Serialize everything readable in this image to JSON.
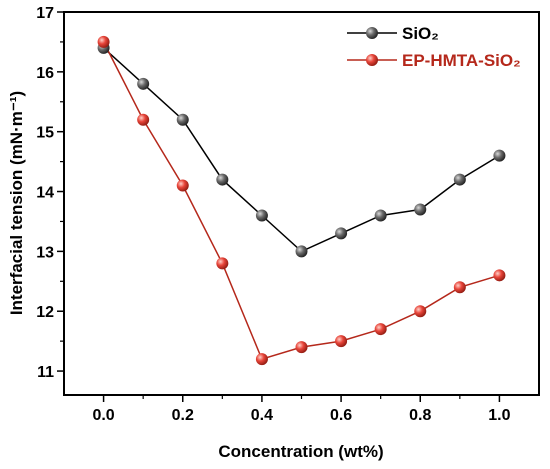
{
  "chart_data": {
    "type": "line",
    "xlabel": "Concentration (wt%)",
    "ylabel": "Interfacial tension (mN·m⁻¹)",
    "xlim": [
      -0.1,
      1.1
    ],
    "ylim": [
      10.6,
      17
    ],
    "x": [
      0.0,
      0.1,
      0.2,
      0.3,
      0.4,
      0.5,
      0.6,
      0.7,
      0.8,
      0.9,
      1.0
    ],
    "x_ticks": [
      0.0,
      0.2,
      0.4,
      0.6,
      0.8,
      1.0
    ],
    "x_tick_labels": [
      "0.0",
      "0.2",
      "0.4",
      "0.6",
      "0.8",
      "1.0"
    ],
    "y_ticks": [
      11,
      12,
      13,
      14,
      15,
      16,
      17
    ],
    "y_tick_labels": [
      "11",
      "12",
      "13",
      "14",
      "15",
      "16",
      "17"
    ],
    "grid": false,
    "legend_position": "top-right",
    "series": [
      {
        "name": "SiO₂",
        "color": "#000000",
        "marker_color": "#555555",
        "values": [
          16.4,
          15.8,
          15.2,
          14.2,
          13.6,
          13.0,
          13.3,
          13.6,
          13.7,
          14.2,
          14.6
        ]
      },
      {
        "name": "EP-HMTA-SiO₂",
        "color": "#b5281b",
        "marker_color": "#e8453a",
        "values": [
          16.5,
          15.2,
          14.1,
          12.8,
          11.2,
          11.4,
          11.5,
          11.7,
          12.0,
          12.4,
          12.6
        ]
      }
    ]
  }
}
